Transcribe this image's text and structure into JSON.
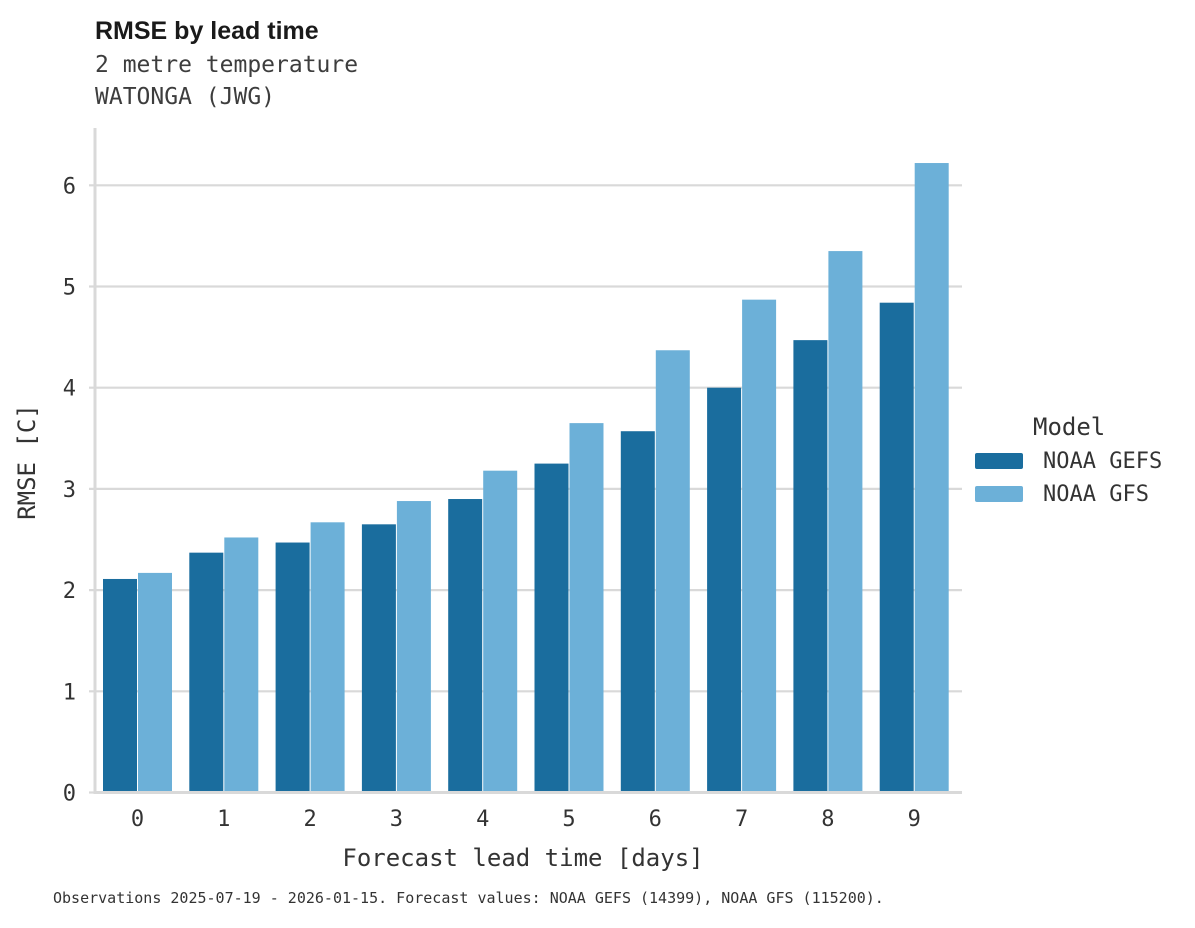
{
  "header": {
    "title": "RMSE by lead time",
    "subtitle_variable": "2 metre temperature",
    "subtitle_station": "WATONGA (JWG)"
  },
  "chart_data": {
    "type": "bar",
    "title": "RMSE by lead time",
    "subtitle": [
      "2 metre temperature",
      "WATONGA (JWG)"
    ],
    "categories": [
      "0",
      "1",
      "2",
      "3",
      "4",
      "5",
      "6",
      "7",
      "8",
      "9"
    ],
    "series": [
      {
        "name": "NOAA GEFS",
        "color": "#1a6d9e",
        "values": [
          2.11,
          2.37,
          2.47,
          2.65,
          2.9,
          3.25,
          3.57,
          4.0,
          4.47,
          4.84
        ]
      },
      {
        "name": "NOAA GFS",
        "color": "#6cb0d8",
        "values": [
          2.17,
          2.52,
          2.67,
          2.88,
          3.18,
          3.65,
          4.37,
          4.87,
          5.35,
          6.22
        ]
      }
    ],
    "xlabel": "Forecast lead time [days]",
    "ylabel": "RMSE [C]",
    "ylim": [
      0,
      6.5
    ],
    "yticks": [
      0,
      1,
      2,
      3,
      4,
      5,
      6
    ],
    "grid": "horizontal-only",
    "legend_position": "right",
    "legend_title": "Model"
  },
  "legend": {
    "title": "Model",
    "entries": [
      {
        "label": "NOAA GEFS",
        "color": "#1a6d9e"
      },
      {
        "label": "NOAA GFS",
        "color": "#6cb0d8"
      }
    ]
  },
  "caption": "Observations 2025-07-19 - 2026-01-15. Forecast values: NOAA GEFS (14399), NOAA GFS (115200).",
  "colors": {
    "axis": "#d9d9d9",
    "grid": "#d9d9d9",
    "tick_text": "#333333",
    "title_text": "#1a1a1a",
    "subtitle_text": "#3d3d3d",
    "background": "#ffffff"
  }
}
